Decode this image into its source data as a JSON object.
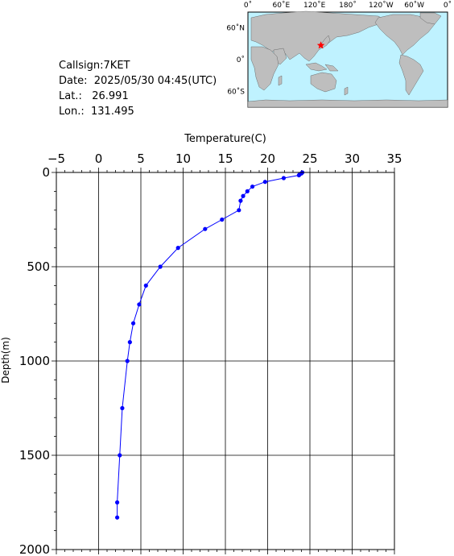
{
  "station": {
    "callsign_label": "Callsign:",
    "callsign": "7KET",
    "date_label": "Date:",
    "date": "2025/05/30 04:45(UTC)",
    "lat_label": "Lat.:",
    "lat": "26.991",
    "lon_label": "Lon.:",
    "lon": "131.495"
  },
  "map": {
    "top_ticks": [
      "0˚",
      "60˚E",
      "120˚E",
      "180˚",
      "120˚W",
      "60˚W",
      "0˚"
    ],
    "lat_ticks": [
      "60˚N",
      "0˚",
      "60˚S"
    ],
    "ocean_color": "#bff2ff",
    "land_color": "#bebebe",
    "marker_color": "#ff0000",
    "marker_lat": 26.991,
    "marker_lon": 131.495
  },
  "chart_data": {
    "type": "line",
    "title": "",
    "xlabel": "Temperature(C)",
    "ylabel": "Depth(m)",
    "xlim": [
      -5,
      35
    ],
    "ylim": [
      2000,
      0
    ],
    "x_ticks": [
      "−5",
      "0",
      "5",
      "10",
      "15",
      "20",
      "25",
      "30",
      "35"
    ],
    "y_ticks": [
      "0",
      "500",
      "1000",
      "1500",
      "2000"
    ],
    "x_tick_values": [
      -5,
      0,
      5,
      10,
      15,
      20,
      25,
      30,
      35
    ],
    "y_tick_values": [
      0,
      500,
      1000,
      1500,
      2000
    ],
    "grid": true,
    "line_color": "#0000ff",
    "series": [
      {
        "points": [
          {
            "temperature": 24.1,
            "depth": 0
          },
          {
            "temperature": 24.0,
            "depth": 5
          },
          {
            "temperature": 23.8,
            "depth": 10
          },
          {
            "temperature": 23.7,
            "depth": 15
          },
          {
            "temperature": 21.9,
            "depth": 30
          },
          {
            "temperature": 19.7,
            "depth": 50
          },
          {
            "temperature": 18.2,
            "depth": 75
          },
          {
            "temperature": 17.6,
            "depth": 100
          },
          {
            "temperature": 17.1,
            "depth": 125
          },
          {
            "temperature": 16.8,
            "depth": 150
          },
          {
            "temperature": 16.6,
            "depth": 200
          },
          {
            "temperature": 14.6,
            "depth": 250
          },
          {
            "temperature": 12.6,
            "depth": 300
          },
          {
            "temperature": 9.4,
            "depth": 400
          },
          {
            "temperature": 7.3,
            "depth": 500
          },
          {
            "temperature": 5.6,
            "depth": 600
          },
          {
            "temperature": 4.8,
            "depth": 700
          },
          {
            "temperature": 4.1,
            "depth": 800
          },
          {
            "temperature": 3.7,
            "depth": 900
          },
          {
            "temperature": 3.4,
            "depth": 1000
          },
          {
            "temperature": 2.8,
            "depth": 1250
          },
          {
            "temperature": 2.5,
            "depth": 1500
          },
          {
            "temperature": 2.2,
            "depth": 1750
          },
          {
            "temperature": 2.2,
            "depth": 1830
          }
        ]
      }
    ]
  }
}
